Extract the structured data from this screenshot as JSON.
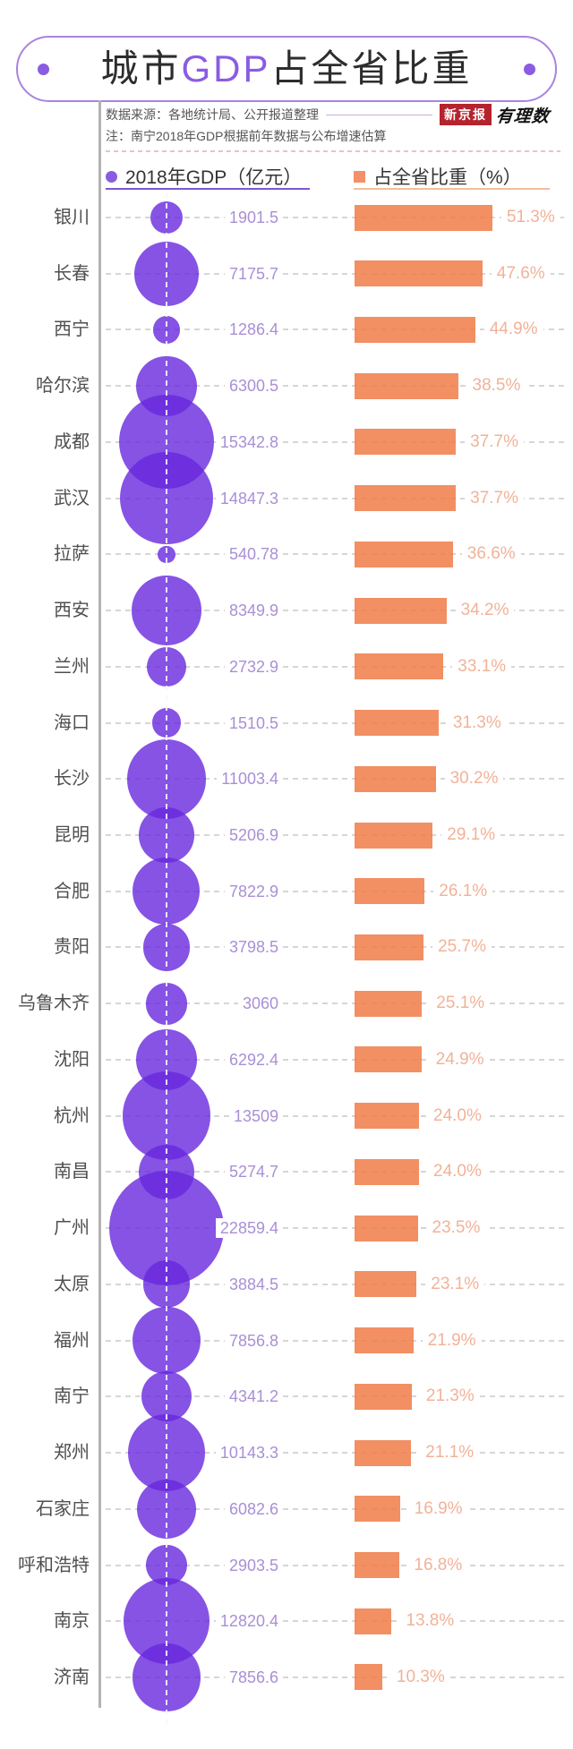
{
  "title": {
    "prefix": "城市",
    "highlight": "GDP",
    "suffix": "占全省比重"
  },
  "notes": {
    "source": "数据来源：各地统计局、公开报道整理",
    "footnote": "注：南宁2018年GDP根据前年数据与公布增速估算"
  },
  "logos": {
    "newspaper": "新京报",
    "column": "有理数"
  },
  "legend": {
    "gdp": "2018年GDP（亿元）",
    "share": "占全省比重（%）"
  },
  "colors": {
    "bubble": "rgba(104,40,221,0.8)",
    "bar": "rgba(240,123,72,0.85)",
    "accent": "#8A5CE2",
    "pill-border": "#A884DE",
    "gdp-text": "#A98FD6",
    "pct-text": "#F2B298",
    "city-text": "#4F4F4F",
    "logo-red": "#B5232D"
  },
  "chart_data": {
    "type": "bubble-bar",
    "title": "城市GDP占全省比重",
    "legend_position": "top",
    "grid": "dashed-row-lines",
    "categories": [
      "银川",
      "长春",
      "西宁",
      "哈尔滨",
      "成都",
      "武汉",
      "拉萨",
      "西安",
      "兰州",
      "海口",
      "长沙",
      "昆明",
      "合肥",
      "贵阳",
      "乌鲁木齐",
      "沈阳",
      "杭州",
      "南昌",
      "广州",
      "太原",
      "福州",
      "南宁",
      "郑州",
      "石家庄",
      "呼和浩特",
      "南京",
      "济南"
    ],
    "series": [
      {
        "name": "2018年GDP（亿元）",
        "encoding": "bubble-area",
        "values": [
          1901.5,
          7175.7,
          1286.4,
          6300.5,
          15342.8,
          14847.3,
          540.78,
          8349.9,
          2732.9,
          1510.5,
          11003.4,
          5206.9,
          7822.9,
          3798.5,
          3060,
          6292.4,
          13509,
          5274.7,
          22859.4,
          3884.5,
          7856.8,
          4341.2,
          10143.3,
          6082.6,
          2903.5,
          12820.4,
          7856.6
        ]
      },
      {
        "name": "占全省比重（%）",
        "encoding": "bar-length",
        "values": [
          51.3,
          47.6,
          44.9,
          38.5,
          37.7,
          37.7,
          36.6,
          34.2,
          33.1,
          31.3,
          30.2,
          29.1,
          26.1,
          25.7,
          25.1,
          24.9,
          24.0,
          24.0,
          23.5,
          23.1,
          21.9,
          21.3,
          21.1,
          16.9,
          16.8,
          13.8,
          10.3
        ]
      }
    ],
    "value_labels": {
      "gdp": [
        "1901.5",
        "7175.7",
        "1286.4",
        "6300.5",
        "15342.8",
        "14847.3",
        "540.78",
        "8349.9",
        "2732.9",
        "1510.5",
        "11003.4",
        "5206.9",
        "7822.9",
        "3798.5",
        "3060",
        "6292.4",
        "13509",
        "5274.7",
        "22859.4",
        "3884.5",
        "7856.8",
        "4341.2",
        "10143.3",
        "6082.6",
        "2903.5",
        "12820.4",
        "7856.6"
      ],
      "pct": [
        "51.3%",
        "47.6%",
        "44.9%",
        "38.5%",
        "37.7%",
        "37.7%",
        "36.6%",
        "34.2%",
        "33.1%",
        "31.3%",
        "30.2%",
        "29.1%",
        "26.1%",
        "25.7%",
        "25.1%",
        "24.9%",
        "24.0%",
        "24.0%",
        "23.5%",
        "23.1%",
        "21.9%",
        "21.3%",
        "21.1%",
        "16.9%",
        "16.8%",
        "13.8%",
        "10.3%"
      ]
    }
  }
}
